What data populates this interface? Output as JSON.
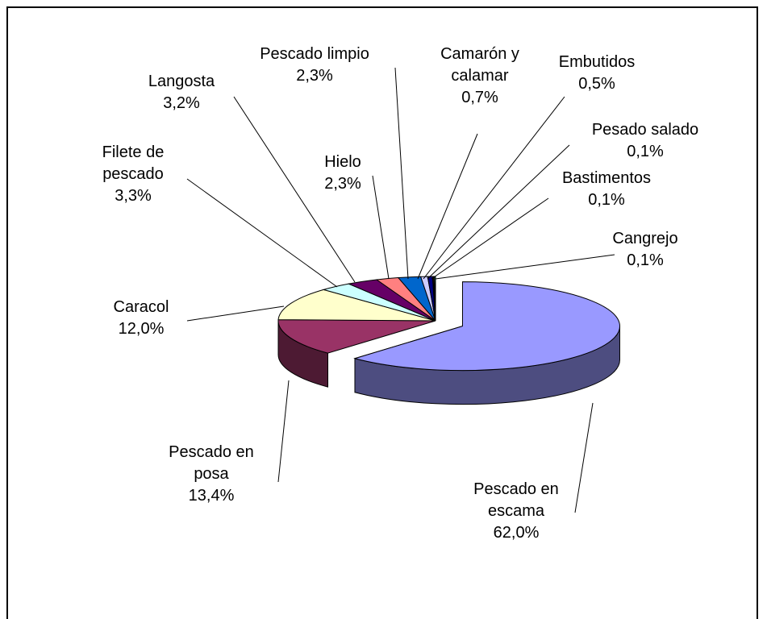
{
  "chart_data": {
    "type": "pie3d",
    "categories": [
      "Pescado en escama",
      "Pescado en posa",
      "Caracol",
      "Filete de pescado",
      "Langosta",
      "Hielo",
      "Pescado limpio",
      "Camarón y calamar",
      "Embutidos",
      "Pesado salado",
      "Bastimentos",
      "Cangrejo"
    ],
    "values": [
      62.0,
      13.4,
      12.0,
      3.3,
      3.2,
      2.3,
      2.3,
      0.7,
      0.5,
      0.1,
      0.1,
      0.1
    ],
    "value_labels": [
      "62,0%",
      "13,4%",
      "12,0%",
      "3,3%",
      "3,2%",
      "2,3%",
      "2,3%",
      "0,7%",
      "0,5%",
      "0,1%",
      "0,1%",
      "0,1%"
    ],
    "colors": [
      "#9999ff",
      "#993366",
      "#ffffcc",
      "#ccffff",
      "#660066",
      "#ff8080",
      "#0066cc",
      "#ccccff",
      "#000080",
      "#ff00ff",
      "#ffff00",
      "#00ffff"
    ],
    "exploded": [
      0
    ]
  }
}
